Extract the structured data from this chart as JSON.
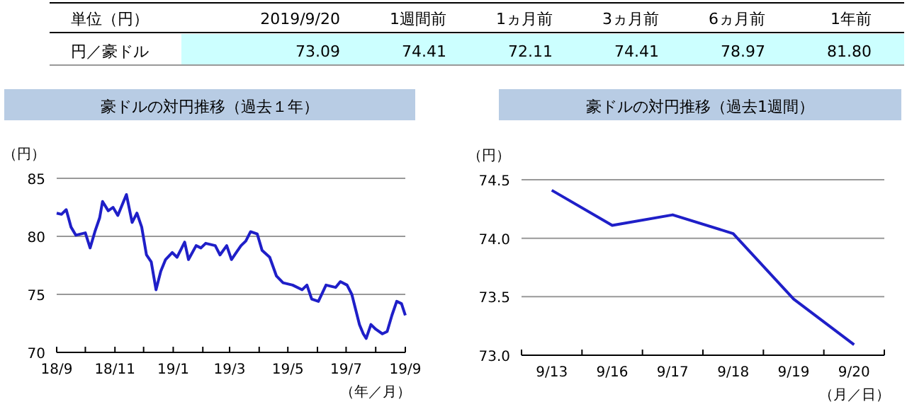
{
  "chart_data": [
    {
      "type": "other",
      "categories": [
        "2019/9/20",
        "1週間前",
        "1ヵ月前",
        "3ヵ月前",
        "6ヵ月前",
        "1年前"
      ],
      "values": [
        73.09,
        74.41,
        72.11,
        74.41,
        78.97,
        81.8
      ],
      "value_labels": [
        "73.09",
        "74.41",
        "72.11",
        "74.41",
        "78.97",
        "81.80"
      ],
      "annotations": [
        "単位（円）",
        "円／豪ドル"
      ]
    },
    {
      "type": "line",
      "title": "豪ドルの対円推移（過去１年）",
      "ylabel": "（円）",
      "xlabel": "（年／月）",
      "color": "#1f1fc8",
      "grid": "y",
      "xlim": [
        "2018-09-01",
        "2019-09-01"
      ],
      "ylim": [
        70,
        85
      ],
      "yticks": [
        70,
        75,
        80,
        85
      ],
      "xticks": [
        {
          "value": "2018-09-01",
          "label": "18/9"
        },
        {
          "value": "2018-10-01",
          "label": null
        },
        {
          "value": "2018-11-01",
          "label": "18/11"
        },
        {
          "value": "2018-12-01",
          "label": null
        },
        {
          "value": "2019-01-01",
          "label": "19/1"
        },
        {
          "value": "2019-02-01",
          "label": null
        },
        {
          "value": "2019-03-01",
          "label": "19/3"
        },
        {
          "value": "2019-04-01",
          "label": null
        },
        {
          "value": "2019-05-01",
          "label": "19/5"
        },
        {
          "value": "2019-06-01",
          "label": null
        },
        {
          "value": "2019-07-01",
          "label": "19/7"
        },
        {
          "value": "2019-08-01",
          "label": null
        },
        {
          "value": "2019-09-01",
          "label": "19/9"
        }
      ],
      "x": [
        "2018-09-01",
        "2018-09-06",
        "2018-09-11",
        "2018-09-16",
        "2018-09-21",
        "2018-10-01",
        "2018-10-06",
        "2018-10-11",
        "2018-10-16",
        "2018-10-19",
        "2018-10-25",
        "2018-10-30",
        "2018-11-04",
        "2018-11-10",
        "2018-11-13",
        "2018-11-19",
        "2018-11-24",
        "2018-11-29",
        "2018-12-04",
        "2018-12-09",
        "2018-12-14",
        "2018-12-19",
        "2018-12-24",
        "2018-12-31",
        "2019-01-05",
        "2019-01-13",
        "2019-01-17",
        "2019-01-25",
        "2019-01-30",
        "2019-02-04",
        "2019-02-14",
        "2019-02-19",
        "2019-02-26",
        "2019-03-03",
        "2019-03-08",
        "2019-03-13",
        "2019-03-18",
        "2019-03-23",
        "2019-03-30",
        "2019-04-04",
        "2019-04-12",
        "2019-04-19",
        "2019-04-26",
        "2019-05-06",
        "2019-05-16",
        "2019-05-21",
        "2019-05-26",
        "2019-06-02",
        "2019-06-10",
        "2019-06-20",
        "2019-06-25",
        "2019-07-02",
        "2019-07-07",
        "2019-07-15",
        "2019-07-19",
        "2019-07-22",
        "2019-07-27",
        "2019-08-01",
        "2019-08-08",
        "2019-08-13",
        "2019-08-18",
        "2019-08-23",
        "2019-08-28",
        "2019-09-01"
      ],
      "values": [
        82.0,
        81.9,
        82.3,
        80.8,
        80.1,
        80.3,
        79.0,
        80.4,
        81.6,
        83.0,
        82.2,
        82.5,
        81.8,
        83.0,
        83.6,
        81.2,
        82.0,
        80.8,
        78.4,
        77.8,
        75.4,
        77.0,
        78.0,
        78.6,
        78.2,
        79.5,
        78.0,
        79.2,
        79.0,
        79.4,
        79.2,
        78.4,
        79.2,
        78.0,
        78.6,
        79.2,
        79.6,
        80.4,
        80.2,
        78.8,
        78.2,
        76.6,
        76.0,
        75.8,
        75.4,
        75.8,
        74.6,
        74.4,
        75.8,
        75.6,
        76.1,
        75.8,
        75.0,
        72.4,
        71.6,
        71.2,
        72.4,
        72.0,
        71.6,
        71.8,
        73.2,
        74.4,
        74.2,
        73.2
      ]
    },
    {
      "type": "line",
      "title": "豪ドルの対円推移（過去1週間）",
      "ylabel": "（円）",
      "xlabel": "（月／日）",
      "color": "#1f1fc8",
      "grid": "y",
      "categories": [
        "9/13",
        "9/16",
        "9/17",
        "9/18",
        "9/19",
        "9/20"
      ],
      "values": [
        74.41,
        74.11,
        74.2,
        74.04,
        73.48,
        73.09
      ],
      "ylim": [
        73,
        74.5
      ],
      "yticks": [
        {
          "value": 73,
          "label": "73.0"
        },
        {
          "value": 73.5,
          "label": "73.5"
        },
        {
          "value": 74,
          "label": "74.0"
        },
        {
          "value": 74.5,
          "label": "74.5"
        }
      ]
    }
  ]
}
